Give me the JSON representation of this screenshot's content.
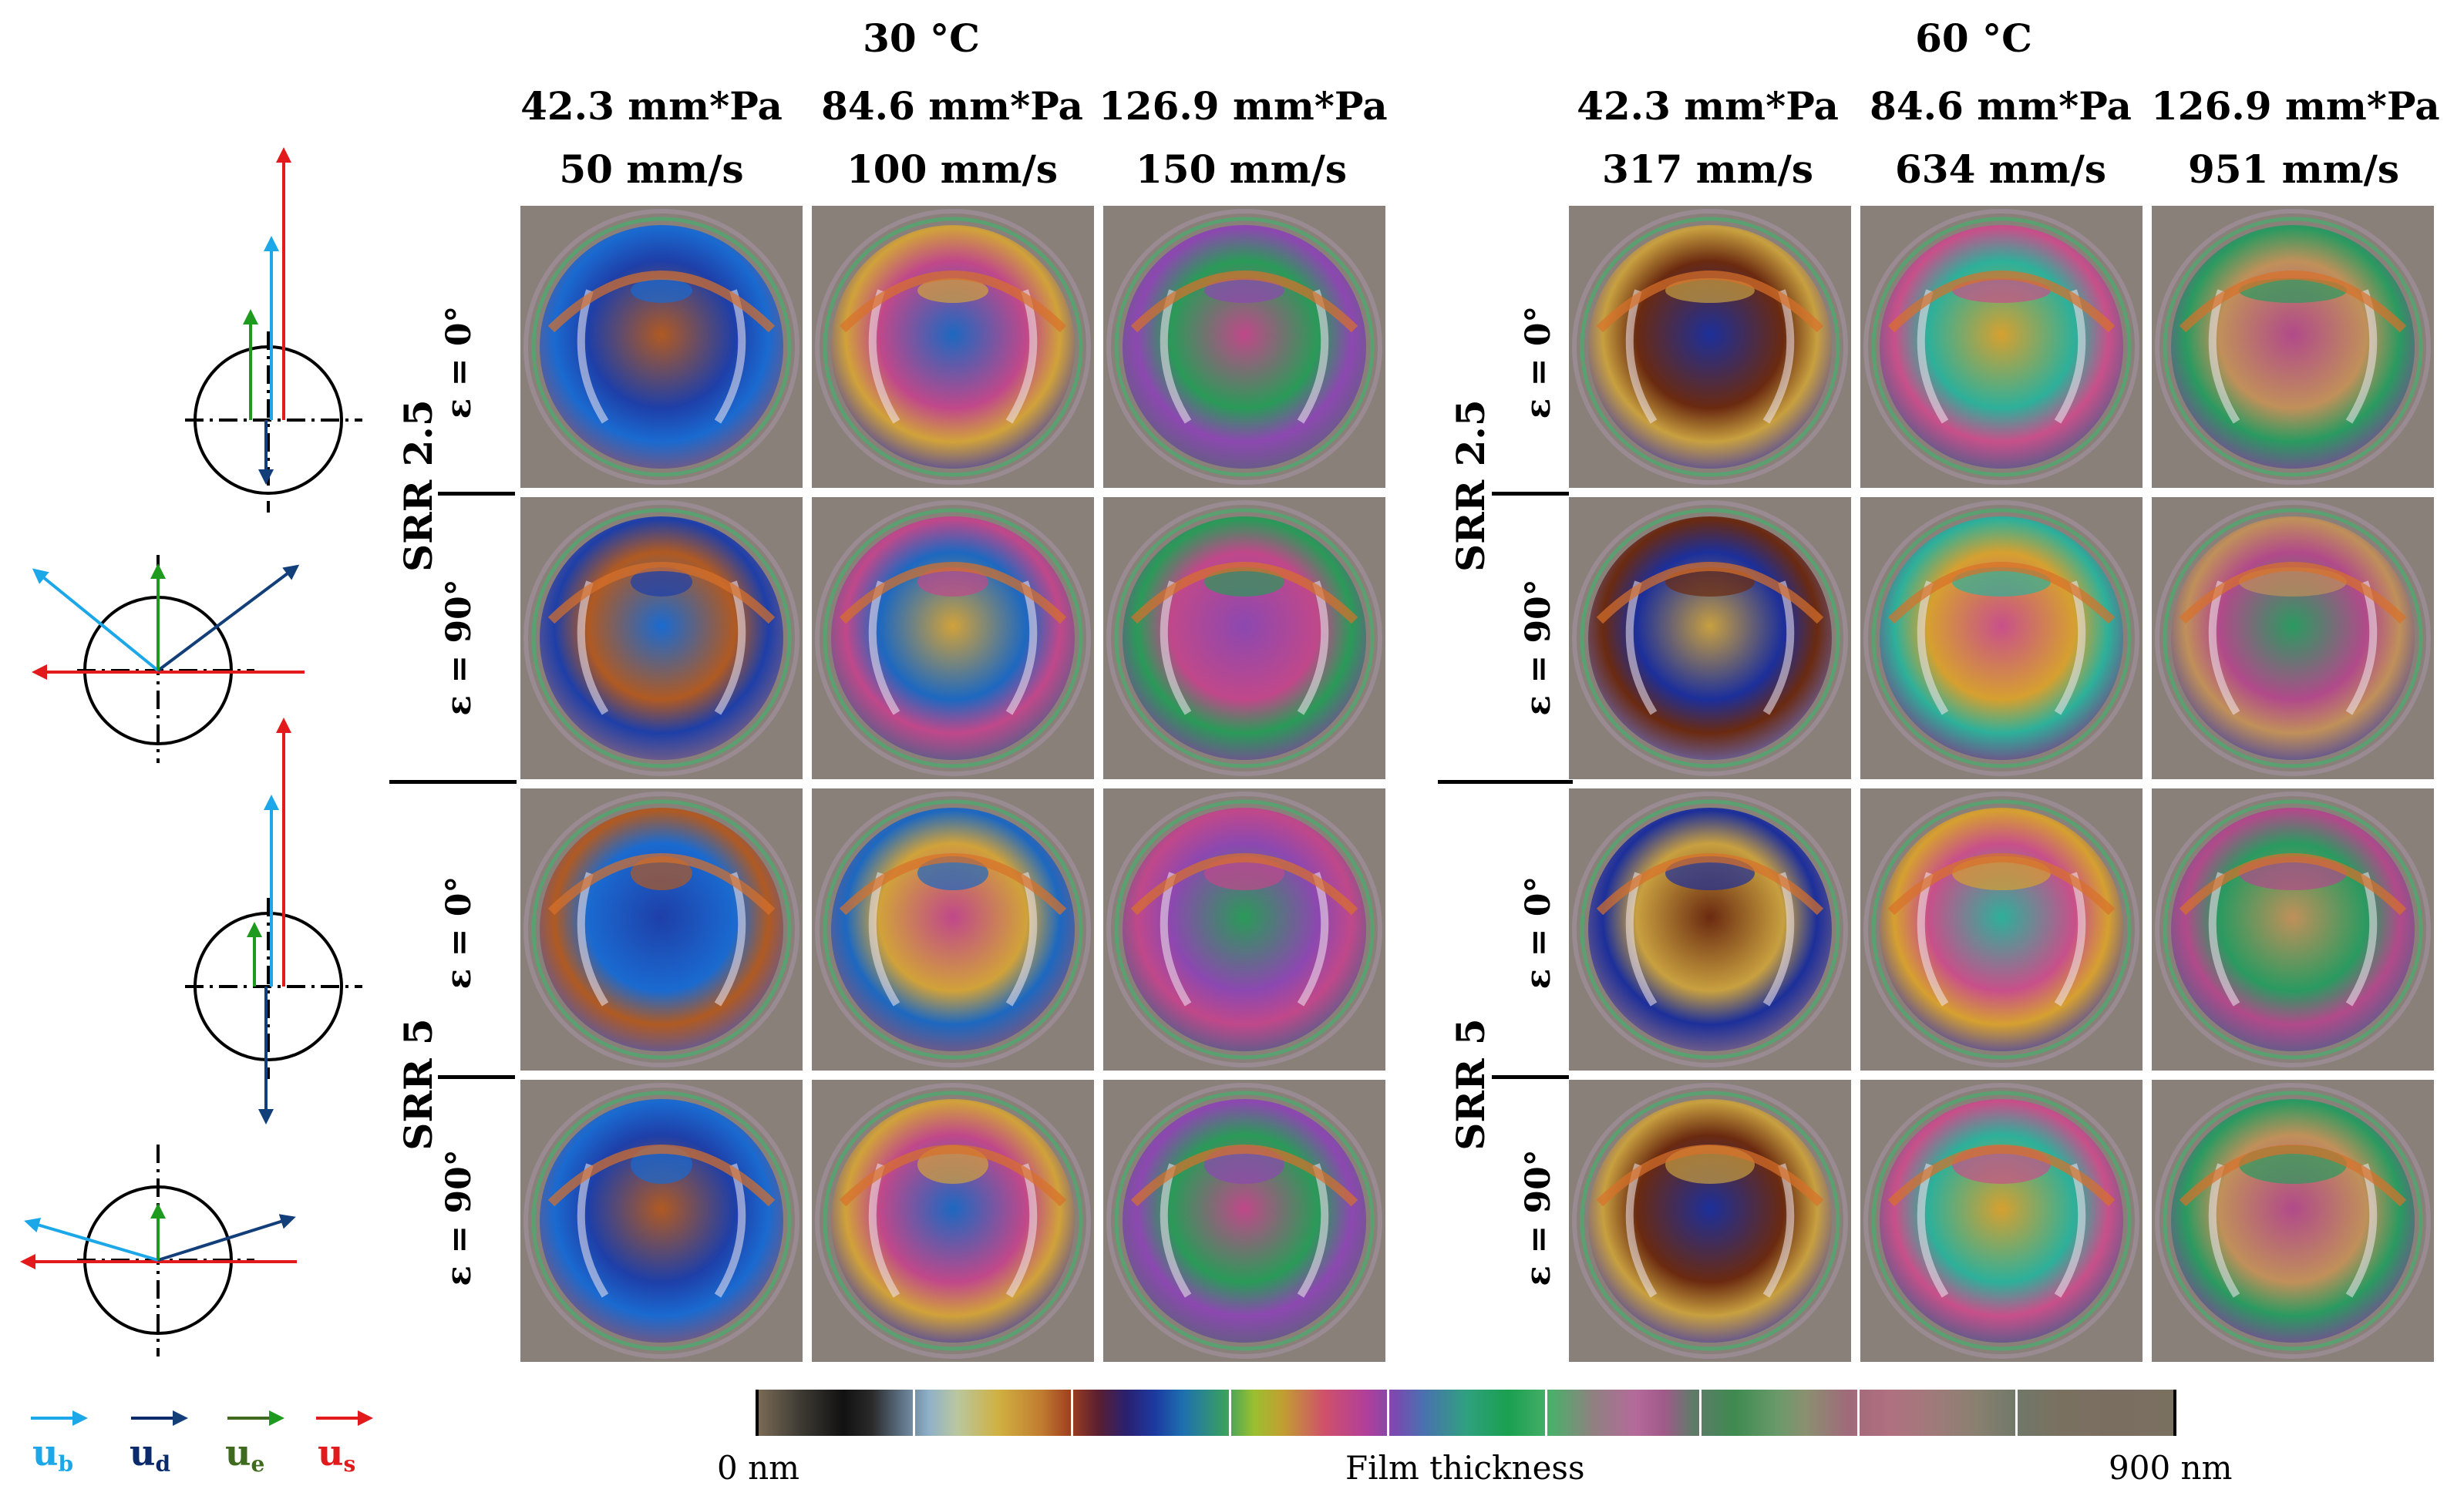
{
  "groups": [
    {
      "temperature": "30 °C",
      "columns": [
        {
          "load": "42.3 mm*Pa",
          "speed": "50 mm/s"
        },
        {
          "load": "84.6 mm*Pa",
          "speed": "100 mm/s"
        },
        {
          "load": "126.9 mm*Pa",
          "speed": "150 mm/s"
        }
      ]
    },
    {
      "temperature": "60 °C",
      "columns": [
        {
          "load": "42.3 mm*Pa",
          "speed": "317 mm/s"
        },
        {
          "load": "84.6 mm*Pa",
          "speed": "634 mm/s"
        },
        {
          "load": "126.9 mm*Pa",
          "speed": "951 mm/s"
        }
      ]
    }
  ],
  "rows": [
    {
      "srr": "SRR 2.5",
      "eps_top": "ε = 0°",
      "eps_bottom": "ε = 90°"
    },
    {
      "srr": "SRR 5",
      "eps_top": "ε = 0°",
      "eps_bottom": "ε = 90°"
    }
  ],
  "vector_legend": {
    "ub": {
      "main": "u",
      "sub": "b",
      "color": "#1ba7e8"
    },
    "ud": {
      "main": "u",
      "sub": "d",
      "color": "#0b2a6b"
    },
    "ue": {
      "main": "u",
      "sub": "e",
      "color": "#3f6b1f"
    },
    "us": {
      "main": "u",
      "sub": "s",
      "color": "#e31a1c"
    }
  },
  "colorbar": {
    "min_label": "0 nm",
    "title": "Film thickness",
    "max_label": "900 nm"
  }
}
